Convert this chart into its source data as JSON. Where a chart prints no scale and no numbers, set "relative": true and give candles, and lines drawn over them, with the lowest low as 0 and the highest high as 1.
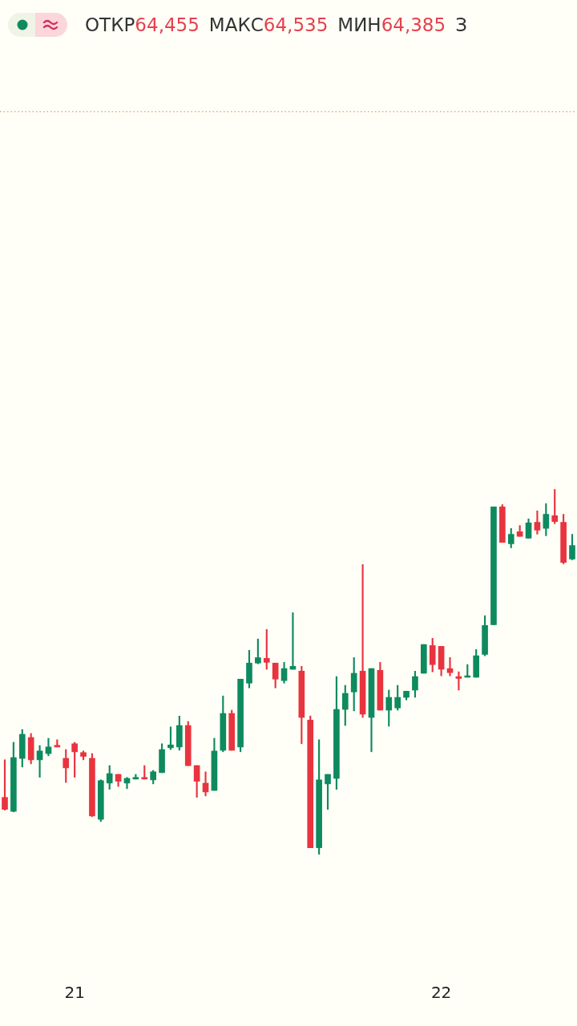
{
  "chart_data": {
    "type": "candlestick",
    "relative": true,
    "annotations": [
      "ОТКР",
      "64,455",
      "МАКС",
      "64,535",
      "МИН",
      "64,385",
      "З"
    ],
    "categories": [
      null,
      null,
      null,
      null,
      null,
      null,
      null,
      null,
      "21",
      null,
      null,
      null,
      null,
      null,
      null,
      null,
      null,
      null,
      null,
      null,
      null,
      null,
      null,
      null,
      null,
      null,
      null,
      null,
      null,
      null,
      null,
      null,
      null,
      null,
      null,
      null,
      null,
      null,
      null,
      null,
      null,
      null,
      null,
      null,
      null,
      null,
      null,
      null,
      null,
      null,
      "22",
      null,
      null,
      null,
      null,
      null,
      null,
      null,
      null,
      null,
      null,
      null,
      null,
      null,
      null,
      null
    ],
    "ohlc": [
      [
        0.156,
        0.259,
        0.121,
        0.123
      ],
      [
        0.118,
        0.307,
        0.116,
        0.265
      ],
      [
        0.263,
        0.342,
        0.239,
        0.329
      ],
      [
        0.32,
        0.331,
        0.248,
        0.259
      ],
      [
        0.259,
        0.298,
        0.211,
        0.283
      ],
      [
        0.276,
        0.318,
        0.27,
        0.294
      ],
      [
        0.298,
        0.314,
        0.294,
        0.294
      ],
      [
        0.263,
        0.287,
        0.197,
        0.237
      ],
      [
        0.303,
        0.307,
        0.211,
        0.281
      ],
      [
        0.279,
        0.283,
        0.259,
        0.268
      ],
      [
        0.263,
        0.276,
        0.103,
        0.105
      ],
      [
        0.096,
        0.204,
        0.09,
        0.202
      ],
      [
        0.195,
        0.243,
        0.178,
        0.221
      ],
      [
        0.219,
        0.219,
        0.186,
        0.2
      ],
      [
        0.195,
        0.211,
        0.18,
        0.208
      ],
      [
        0.206,
        0.219,
        0.206,
        0.211
      ],
      [
        0.211,
        0.243,
        0.206,
        0.206
      ],
      [
        0.204,
        0.23,
        0.193,
        0.226
      ],
      [
        0.224,
        0.303,
        0.224,
        0.287
      ],
      [
        0.292,
        0.349,
        0.287,
        0.3
      ],
      [
        0.294,
        0.379,
        0.285,
        0.353
      ],
      [
        0.353,
        0.364,
        0.243,
        0.243
      ],
      [
        0.243,
        0.243,
        0.156,
        0.2
      ],
      [
        0.195,
        0.226,
        0.16,
        0.171
      ],
      [
        0.175,
        0.318,
        0.175,
        0.283
      ],
      [
        0.285,
        0.434,
        0.281,
        0.386
      ],
      [
        0.386,
        0.395,
        0.285,
        0.285
      ],
      [
        0.294,
        0.48,
        0.281,
        0.48
      ],
      [
        0.469,
        0.559,
        0.456,
        0.524
      ],
      [
        0.524,
        0.59,
        0.522,
        0.539
      ],
      [
        0.537,
        0.616,
        0.507,
        0.526
      ],
      [
        0.524,
        0.524,
        0.456,
        0.48
      ],
      [
        0.476,
        0.526,
        0.469,
        0.509
      ],
      [
        0.507,
        0.662,
        0.507,
        0.515
      ],
      [
        0.502,
        0.515,
        0.303,
        0.375
      ],
      [
        0.368,
        0.379,
        0.018,
        0.018
      ],
      [
        0.018,
        0.314,
        0,
        0.204
      ],
      [
        0.193,
        0.219,
        0.123,
        0.219
      ],
      [
        0.208,
        0.487,
        0.178,
        0.397
      ],
      [
        0.397,
        0.463,
        0.353,
        0.441
      ],
      [
        0.445,
        0.539,
        0.393,
        0.496
      ],
      [
        0.502,
        0.794,
        0.375,
        0.384
      ],
      [
        0.375,
        0.509,
        0.281,
        0.509
      ],
      [
        0.504,
        0.526,
        0.395,
        0.395
      ],
      [
        0.395,
        0.45,
        0.351,
        0.43
      ],
      [
        0.401,
        0.463,
        0.395,
        0.43
      ],
      [
        0.43,
        0.447,
        0.423,
        0.447
      ],
      [
        0.45,
        0.502,
        0.43,
        0.487
      ],
      [
        0.496,
        0.575,
        0.496,
        0.575
      ],
      [
        0.572,
        0.592,
        0.5,
        0.52
      ],
      [
        0.57,
        0.57,
        0.489,
        0.507
      ],
      [
        0.509,
        0.539,
        0.489,
        0.498
      ],
      [
        0.487,
        0.5,
        0.45,
        0.482
      ],
      [
        0.485,
        0.52,
        0.485,
        0.487
      ],
      [
        0.485,
        0.561,
        0.485,
        0.544
      ],
      [
        0.548,
        0.654,
        0.544,
        0.627
      ],
      [
        0.629,
        0.952,
        0.629,
        0.952
      ],
      [
        0.952,
        0.958,
        0.855,
        0.855
      ],
      [
        0.851,
        0.893,
        0.84,
        0.877
      ],
      [
        0.884,
        0.901,
        0.871,
        0.871
      ],
      [
        0.866,
        0.919,
        0.866,
        0.908
      ],
      [
        0.91,
        0.941,
        0.877,
        0.888
      ],
      [
        0.893,
        0.961,
        0.873,
        0.932
      ],
      [
        0.928,
        1,
        0.906,
        0.912
      ],
      [
        0.91,
        0.932,
        0.796,
        0.8
      ],
      [
        0.809,
        0.877,
        0.807,
        0.846
      ]
    ],
    "colors": [
      "#e8343f",
      "#0e8a5f",
      "#0e8a5f",
      "#e8343f",
      "#0e8a5f",
      "#0e8a5f",
      "#e8343f",
      "#e8343f",
      "#e8343f",
      "#e8343f",
      "#e8343f",
      "#0e8a5f",
      "#0e8a5f",
      "#e8343f",
      "#0e8a5f",
      "#0e8a5f",
      "#e8343f",
      "#0e8a5f",
      "#0e8a5f",
      "#0e8a5f",
      "#0e8a5f",
      "#e8343f",
      "#e8343f",
      "#e8343f",
      "#0e8a5f",
      "#0e8a5f",
      "#e8343f",
      "#0e8a5f",
      "#0e8a5f",
      "#0e8a5f",
      "#e8343f",
      "#e8343f",
      "#0e8a5f",
      "#0e8a5f",
      "#e8343f",
      "#e8343f",
      "#0e8a5f",
      "#0e8a5f",
      "#0e8a5f",
      "#0e8a5f",
      "#0e8a5f",
      "#e8343f",
      "#0e8a5f",
      "#e8343f",
      "#0e8a5f",
      "#0e8a5f",
      "#0e8a5f",
      "#0e8a5f",
      "#0e8a5f",
      "#e8343f",
      "#e8343f",
      "#e8343f",
      "#e8343f",
      "#0e8a5f",
      "#0e8a5f",
      "#0e8a5f",
      "#0e8a5f",
      "#e8343f",
      "#0e8a5f",
      "#e8343f",
      "#0e8a5f",
      "#e8343f",
      "#0e8a5f",
      "#e8343f",
      "#e8343f",
      "#0e8a5f"
    ],
    "ref_lines": [
      {
        "axis": "y",
        "value": 2.035,
        "color": "#e8956a",
        "line_style": "dotted"
      }
    ]
  }
}
